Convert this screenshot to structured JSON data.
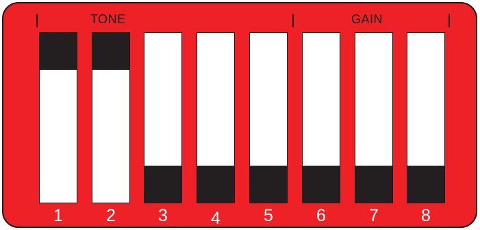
{
  "labels": {
    "tone": "TONE",
    "gain": "GAIN"
  },
  "colors": {
    "panel": "#ee2127",
    "lever": "#231f20",
    "slot": "#ffffff",
    "number": "#ffffff",
    "border": "#1a1a1a"
  },
  "switches": [
    {
      "number": "1",
      "position": "up",
      "group": "TONE"
    },
    {
      "number": "2",
      "position": "up",
      "group": "TONE"
    },
    {
      "number": "3",
      "position": "down",
      "group": "TONE"
    },
    {
      "number": "4",
      "position": "down",
      "group": "TONE"
    },
    {
      "number": "5",
      "position": "down",
      "group": "TONE"
    },
    {
      "number": "6",
      "position": "down",
      "group": "GAIN"
    },
    {
      "number": "7",
      "position": "down",
      "group": "GAIN"
    },
    {
      "number": "8",
      "position": "down",
      "group": "GAIN"
    }
  ]
}
